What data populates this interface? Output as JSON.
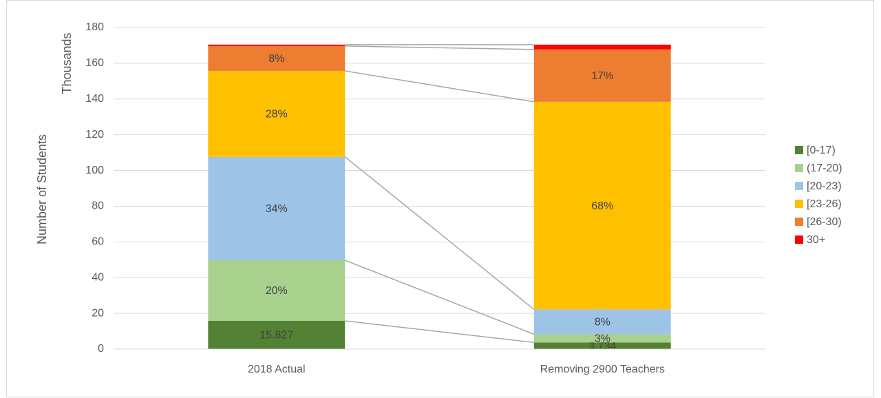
{
  "chart_data": {
    "type": "stacked_bar",
    "y_axis_title": "Number of Students",
    "y_axis_units": "Thousands",
    "categories": [
      "2018 Actual",
      "Removing 2900 Teachers"
    ],
    "series": [
      {
        "name": "[0-17)",
        "color": "#548235",
        "values": [
          15.827,
          3.734
        ]
      },
      {
        "name": "(17-20)",
        "color": "#a9d18e",
        "values": [
          33.9,
          4.6
        ],
        "value_labels": [
          "20%",
          "3%"
        ]
      },
      {
        "name": "[20-23)",
        "color": "#9dc3e6",
        "values": [
          57.9,
          13.9
        ],
        "value_labels": [
          "34%",
          "8%"
        ]
      },
      {
        "name": "[23-26)",
        "color": "#ffc000",
        "values": [
          48.1,
          116.2
        ],
        "value_labels": [
          "28%",
          "68%"
        ]
      },
      {
        "name": "[26-30)",
        "color": "#ed7d31",
        "values": [
          13.9,
          29.3
        ],
        "value_labels": [
          "8%",
          "17%"
        ]
      },
      {
        "name": "30+",
        "color": "#ff0000",
        "values": [
          0.8,
          2.7
        ]
      }
    ],
    "ylim": [
      0,
      180
    ],
    "yticks": [
      0,
      20,
      40,
      60,
      80,
      100,
      120,
      140,
      160,
      180
    ],
    "grid": true,
    "legend": "right"
  }
}
